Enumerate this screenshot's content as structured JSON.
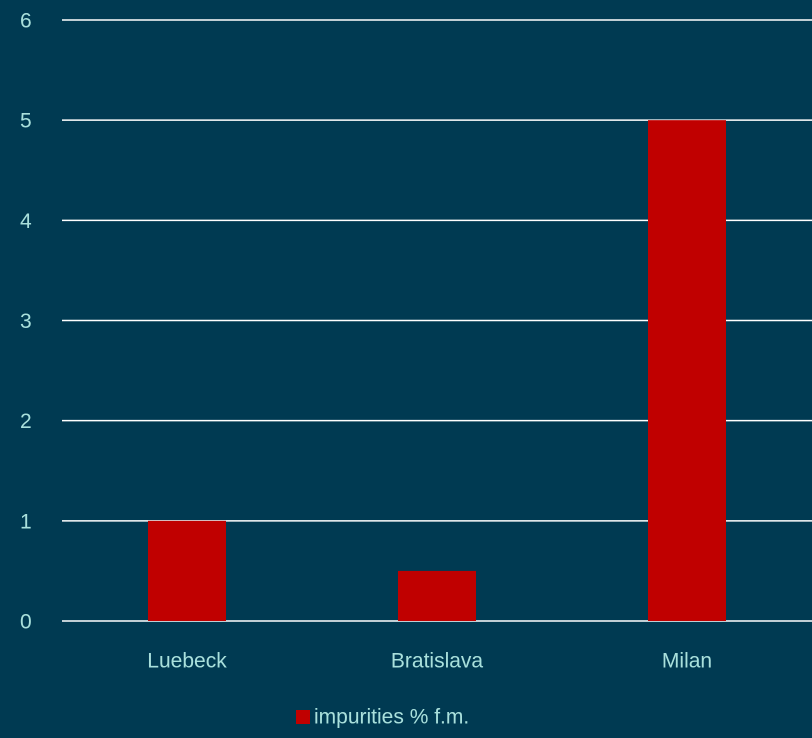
{
  "chart_data": {
    "type": "bar",
    "categories": [
      "Luebeck",
      "Bratislava",
      "Milan"
    ],
    "series": [
      {
        "name": "impurities % f.m.",
        "color": "#c00000",
        "values": [
          1,
          0.5,
          5
        ]
      }
    ],
    "ylim": [
      0,
      6
    ],
    "yticks": [
      0,
      1,
      2,
      3,
      4,
      5,
      6
    ],
    "grid": true,
    "legend": "bottom"
  }
}
